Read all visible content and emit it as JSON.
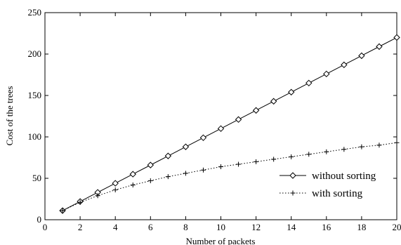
{
  "chart_data": {
    "type": "line",
    "title": "",
    "xlabel": "Number of packets",
    "ylabel": "Cost of the trees",
    "xlim": [
      0,
      20
    ],
    "ylim": [
      0,
      250
    ],
    "xticks": [
      0,
      2,
      4,
      6,
      8,
      10,
      12,
      14,
      16,
      18,
      20
    ],
    "yticks": [
      0,
      50,
      100,
      150,
      200,
      250
    ],
    "grid": false,
    "legend_position": "lower-right",
    "x": [
      1,
      2,
      3,
      4,
      5,
      6,
      7,
      8,
      9,
      10,
      11,
      12,
      13,
      14,
      15,
      16,
      17,
      18,
      19,
      20
    ],
    "series": [
      {
        "name": "without sorting",
        "marker": "diamond",
        "line": "solid",
        "values": [
          11,
          22,
          33,
          44,
          55,
          66,
          77,
          88,
          99,
          110,
          121,
          132,
          143,
          154,
          165,
          176,
          187,
          198,
          209,
          220
        ]
      },
      {
        "name": "with sorting",
        "marker": "plus",
        "line": "dotted",
        "values": [
          11,
          21,
          29,
          36,
          42,
          47,
          52,
          56,
          60,
          64,
          67,
          70,
          73,
          76,
          79,
          82,
          85,
          88,
          90,
          93
        ]
      }
    ]
  }
}
